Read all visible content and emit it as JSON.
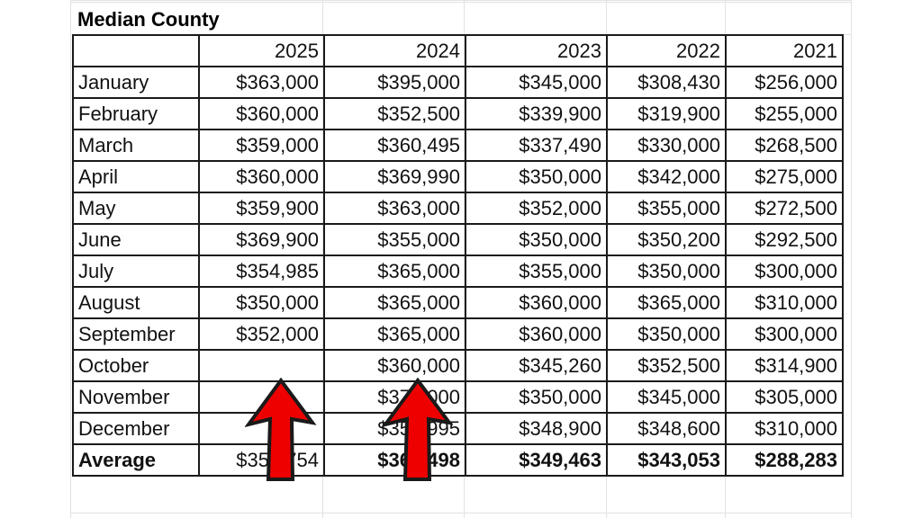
{
  "sheet": {
    "title": "Median County",
    "columns": [
      "",
      "2025",
      "2024",
      "2023",
      "2022",
      "2021"
    ],
    "rows": [
      {
        "month": "January",
        "values": [
          "$363,000",
          "$395,000",
          "$345,000",
          "$308,430",
          "$256,000"
        ]
      },
      {
        "month": "February",
        "values": [
          "$360,000",
          "$352,500",
          "$339,900",
          "$319,900",
          "$255,000"
        ]
      },
      {
        "month": "March",
        "values": [
          "$359,000",
          "$360,495",
          "$337,490",
          "$330,000",
          "$268,500"
        ]
      },
      {
        "month": "April",
        "values": [
          "$360,000",
          "$369,990",
          "$350,000",
          "$342,000",
          "$275,000"
        ]
      },
      {
        "month": "May",
        "values": [
          "$359,900",
          "$363,000",
          "$352,000",
          "$355,000",
          "$272,500"
        ]
      },
      {
        "month": "June",
        "values": [
          "$369,900",
          "$355,000",
          "$350,000",
          "$350,200",
          "$292,500"
        ]
      },
      {
        "month": "July",
        "values": [
          "$354,985",
          "$365,000",
          "$355,000",
          "$350,000",
          "$300,000"
        ]
      },
      {
        "month": "August",
        "values": [
          "$350,000",
          "$365,000",
          "$360,000",
          "$365,000",
          "$310,000"
        ]
      },
      {
        "month": "September",
        "values": [
          "$352,000",
          "$365,000",
          "$360,000",
          "$350,000",
          "$300,000"
        ]
      },
      {
        "month": "October",
        "values": [
          "",
          "$360,000",
          "$345,260",
          "$352,500",
          "$314,900"
        ]
      },
      {
        "month": "November",
        "values": [
          "",
          "$370,000",
          "$350,000",
          "$345,000",
          "$305,000"
        ]
      },
      {
        "month": "December",
        "values": [
          "",
          "$352,995",
          "$348,900",
          "$348,600",
          "$310,000"
        ]
      }
    ],
    "average": {
      "label": "Average",
      "values": [
        "$358,754",
        "$364,498",
        "$349,463",
        "$343,053",
        "$288,283"
      ]
    }
  },
  "annotations": {
    "arrow_color": "#ee0000",
    "arrows": [
      {
        "name": "arrow-2025",
        "points_to": "2025 September / empty Oct-Dec cells"
      },
      {
        "name": "arrow-2024",
        "points_to": "2024 September / Oct-Dec cells"
      }
    ]
  }
}
